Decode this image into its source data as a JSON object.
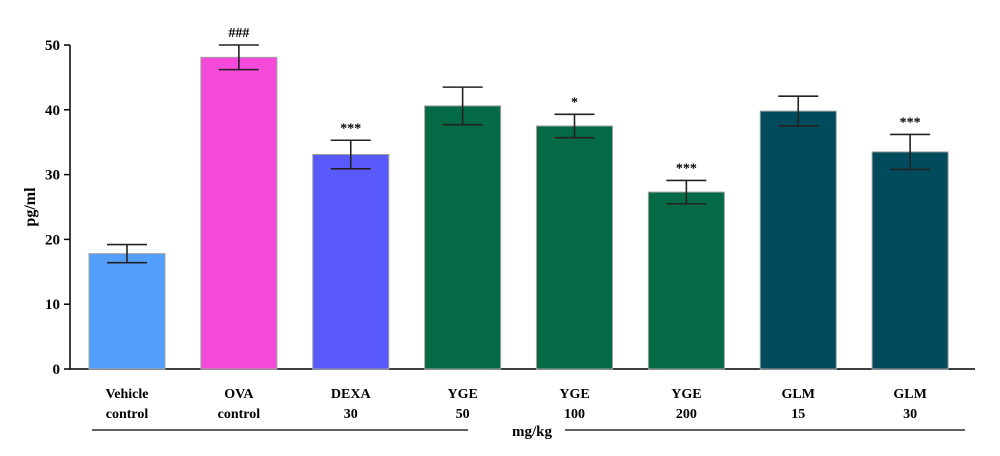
{
  "chart_data": {
    "type": "bar",
    "title": "",
    "xlabel": "",
    "ylabel": "pg/ml",
    "unit_label": "mg/kg",
    "ylim": [
      0,
      50
    ],
    "yticks": [
      0,
      10,
      20,
      30,
      40,
      50
    ],
    "grid": false,
    "categories": [
      {
        "line1": "Vehicle",
        "line2": "control"
      },
      {
        "line1": "OVA",
        "line2": "control"
      },
      {
        "line1": "DEXA",
        "line2": "30"
      },
      {
        "line1": "YGE",
        "line2": "50"
      },
      {
        "line1": "YGE",
        "line2": "100"
      },
      {
        "line1": "YGE",
        "line2": "200"
      },
      {
        "line1": "GLM",
        "line2": "15"
      },
      {
        "line1": "GLM",
        "line2": "30"
      }
    ],
    "values": [
      17.8,
      48.1,
      33.1,
      40.6,
      37.5,
      27.3,
      39.8,
      33.5
    ],
    "errors": [
      1.4,
      1.9,
      2.2,
      2.9,
      1.8,
      1.8,
      2.3,
      2.7
    ],
    "significance": [
      "",
      "###",
      "***",
      "",
      "*",
      "***",
      "",
      "***"
    ],
    "colors": [
      "#559ffc",
      "#f54ad9",
      "#5a5afb",
      "#046a45",
      "#046a45",
      "#046a45",
      "#024b5c",
      "#024b5c"
    ]
  }
}
